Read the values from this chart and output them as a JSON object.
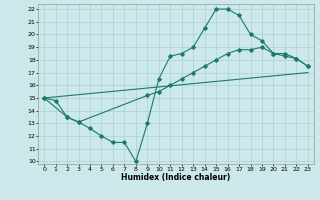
{
  "xlabel": "Humidex (Indice chaleur)",
  "bg_color": "#cce8ea",
  "grid_color": "#aad0d4",
  "line_color": "#1a7a6e",
  "xlim": [
    -0.5,
    23.5
  ],
  "ylim": [
    9.8,
    22.4
  ],
  "xticks": [
    0,
    1,
    2,
    3,
    4,
    5,
    6,
    7,
    8,
    9,
    10,
    11,
    12,
    13,
    14,
    15,
    16,
    17,
    18,
    19,
    20,
    21,
    22,
    23
  ],
  "yticks": [
    10,
    11,
    12,
    13,
    14,
    15,
    16,
    17,
    18,
    19,
    20,
    21,
    22
  ],
  "curve1_x": [
    0,
    1,
    2,
    3,
    4,
    5,
    6,
    7,
    8,
    9,
    10,
    11,
    12,
    13,
    14,
    15,
    16,
    17,
    18,
    19,
    20,
    21,
    22,
    23
  ],
  "curve1_y": [
    15.0,
    14.8,
    13.5,
    13.1,
    12.6,
    12.0,
    11.5,
    11.5,
    10.0,
    13.0,
    16.5,
    18.3,
    18.5,
    19.0,
    20.5,
    22.0,
    22.0,
    21.5,
    20.0,
    19.5,
    18.5,
    18.5,
    18.1,
    17.5
  ],
  "curve2_x": [
    0,
    2,
    3,
    9,
    10,
    11,
    12,
    13,
    14,
    15,
    16,
    17,
    18,
    19,
    20,
    21,
    22,
    23
  ],
  "curve2_y": [
    15.0,
    13.5,
    13.1,
    15.2,
    15.5,
    16.0,
    16.5,
    17.0,
    17.5,
    18.0,
    18.5,
    18.8,
    18.8,
    19.0,
    18.5,
    18.3,
    18.1,
    17.5
  ],
  "curve3_x": [
    0,
    23
  ],
  "curve3_y": [
    15.0,
    17.0
  ]
}
